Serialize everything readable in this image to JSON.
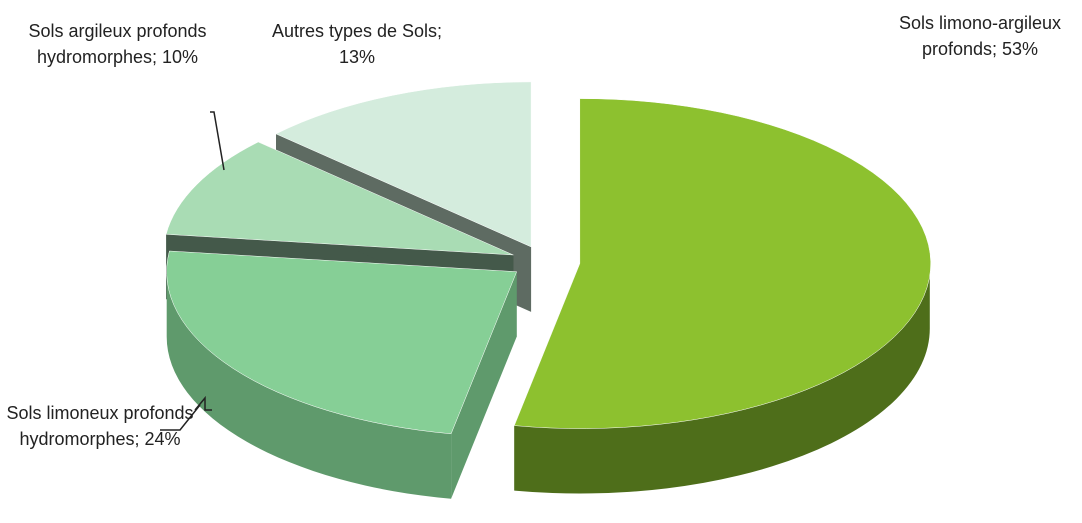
{
  "chart_data": {
    "type": "pie3d",
    "values": [
      53,
      24,
      10,
      13
    ],
    "value_labels": [
      "Sols limono-argileux profonds; 53%",
      "Sols limoneux profonds hydromorphes; 24%",
      "Sols argileux profonds hydromorphes; 10%",
      "Autres types de Sols; 13%"
    ],
    "colors": [
      "#8dc12f",
      "#86cf96",
      "#a9dcb4",
      "#d4ecdd"
    ],
    "side_colors": [
      "#4e6e1a",
      "#5f9a6c",
      "#44594a",
      "#5e6b62"
    ]
  }
}
